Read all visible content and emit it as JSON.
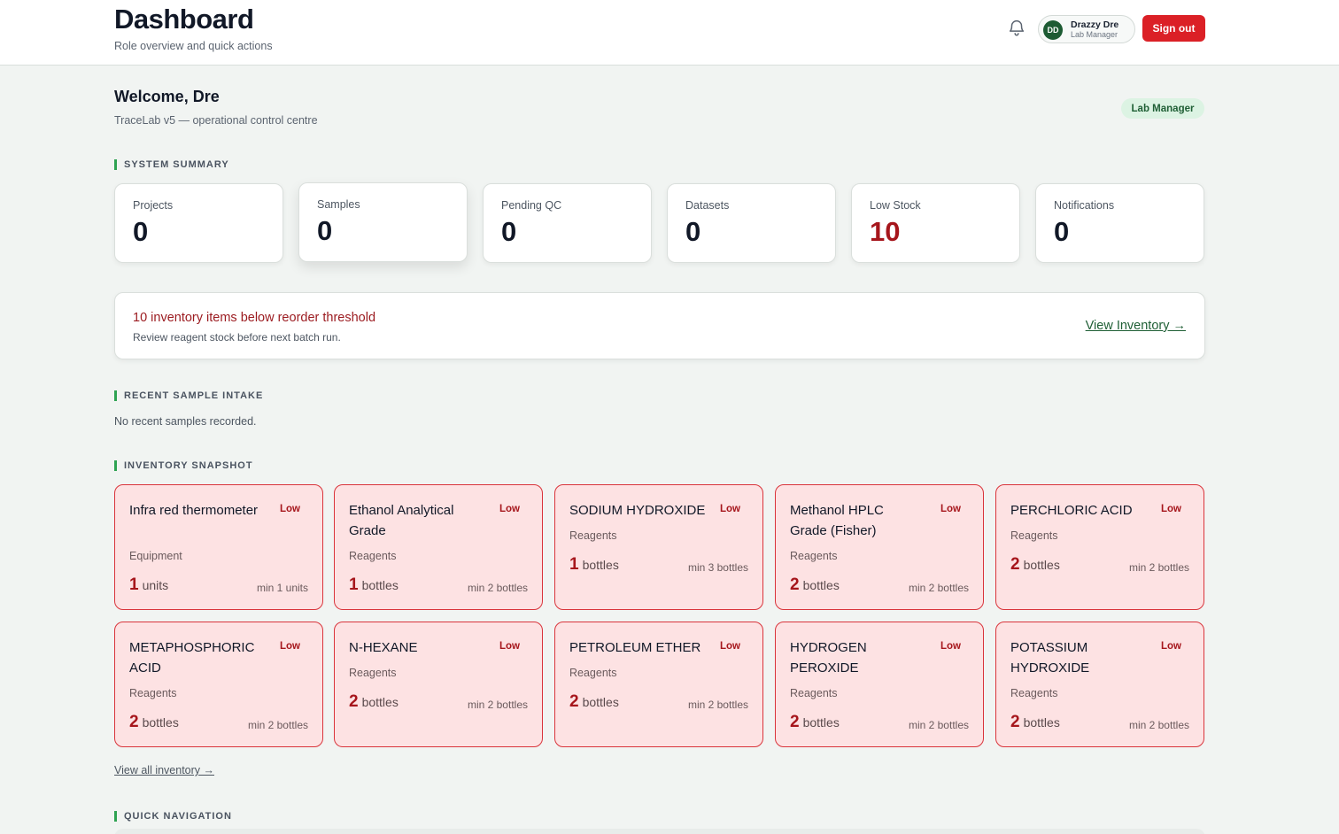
{
  "header": {
    "title": "Dashboard",
    "subtitle": "Role overview and quick actions",
    "user": {
      "initials": "DD",
      "name": "Drazzy Dre",
      "role": "Lab Manager"
    },
    "sign_out_label": "Sign out",
    "icons": {
      "notifications": "bell-icon"
    }
  },
  "welcome": {
    "title": "Welcome, Dre",
    "subtitle": "TraceLab v5 — operational control centre",
    "role_badge": "Lab Manager"
  },
  "sections": {
    "system_summary": "SYSTEM SUMMARY",
    "recent_intake": "RECENT SAMPLE INTAKE",
    "inventory_snapshot": "INVENTORY SNAPSHOT",
    "quick_navigation": "QUICK NAVIGATION"
  },
  "stats": [
    {
      "label": "Projects",
      "value": "0"
    },
    {
      "label": "Samples",
      "value": "0"
    },
    {
      "label": "Pending QC",
      "value": "0"
    },
    {
      "label": "Datasets",
      "value": "0"
    },
    {
      "label": "Low Stock",
      "value": "10"
    },
    {
      "label": "Notifications",
      "value": "0"
    }
  ],
  "alert": {
    "title": "10 inventory items below reorder threshold",
    "subtitle": "Review reagent stock before next batch run.",
    "link": "View Inventory →"
  },
  "recent_intake": {
    "empty_text": "No recent samples recorded."
  },
  "inventory": [
    {
      "name": "Infra red thermometer",
      "badge": "Low",
      "category": "Equipment",
      "qty": "1",
      "unit": "units",
      "min": "min 1 units"
    },
    {
      "name": "Ethanol Analytical Grade",
      "badge": "Low",
      "category": "Reagents",
      "qty": "1",
      "unit": "bottles",
      "min": "min 2 bottles"
    },
    {
      "name": "SODIUM HYDROXIDE",
      "badge": "Low",
      "category": "Reagents",
      "qty": "1",
      "unit": "bottles",
      "min": "min 3 bottles"
    },
    {
      "name": "Methanol HPLC Grade (Fisher)",
      "badge": "Low",
      "category": "Reagents",
      "qty": "2",
      "unit": "bottles",
      "min": "min 2 bottles"
    },
    {
      "name": "PERCHLORIC ACID",
      "badge": "Low",
      "category": "Reagents",
      "qty": "2",
      "unit": "bottles",
      "min": "min 2 bottles"
    },
    {
      "name": "METAPHOSPHORIC ACID",
      "badge": "Low",
      "category": "Reagents",
      "qty": "2",
      "unit": "bottles",
      "min": "min 2 bottles"
    },
    {
      "name": "N-HEXANE",
      "badge": "Low",
      "category": "Reagents",
      "qty": "2",
      "unit": "bottles",
      "min": "min 2 bottles"
    },
    {
      "name": "PETROLEUM ETHER",
      "badge": "Low",
      "category": "Reagents",
      "qty": "2",
      "unit": "bottles",
      "min": "min 2 bottles"
    },
    {
      "name": "HYDROGEN PEROXIDE",
      "badge": "Low",
      "category": "Reagents",
      "qty": "2",
      "unit": "bottles",
      "min": "min 2 bottles"
    },
    {
      "name": "POTASSIUM HYDROXIDE",
      "badge": "Low",
      "category": "Reagents",
      "qty": "2",
      "unit": "bottles",
      "min": "min 2 bottles"
    }
  ],
  "view_all_inventory": "View all inventory →",
  "colors": {
    "accent": "#2fa352",
    "danger": "#db2026",
    "low_stock_bg": "#fde2e3"
  }
}
